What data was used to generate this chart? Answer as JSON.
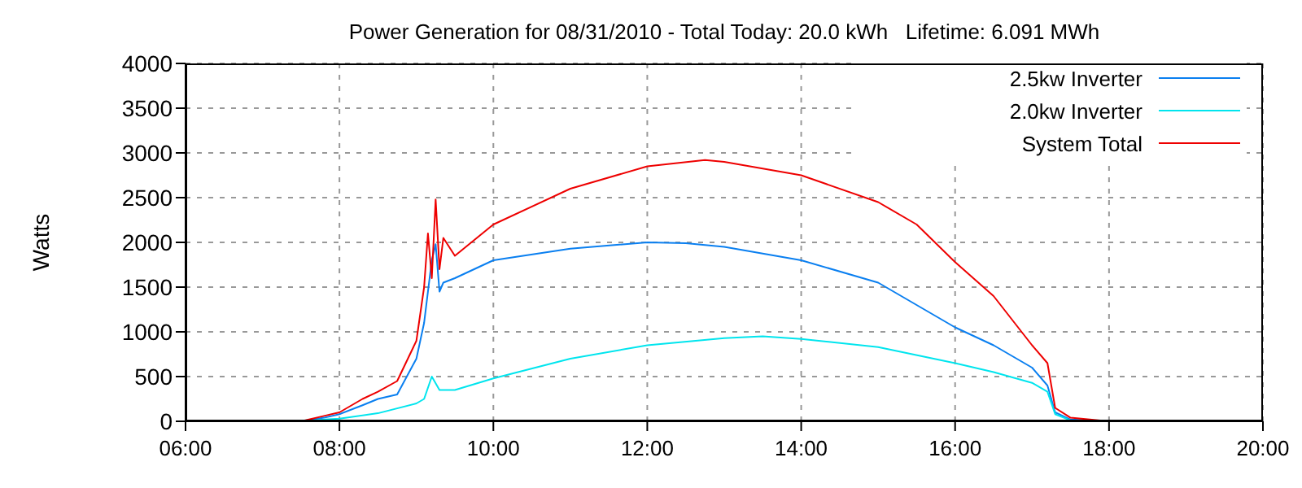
{
  "chart_data": {
    "type": "line",
    "title": "Power Generation for 08/31/2010 - Total Today: 20.0 kWh   Lifetime: 6.091 MWh",
    "ylabel": "Watts",
    "xlim": [
      6,
      20
    ],
    "xticks": [
      {
        "value": 6,
        "label": "06:00"
      },
      {
        "value": 8,
        "label": "08:00"
      },
      {
        "value": 10,
        "label": "10:00"
      },
      {
        "value": 12,
        "label": "12:00"
      },
      {
        "value": 14,
        "label": "14:00"
      },
      {
        "value": 16,
        "label": "16:00"
      },
      {
        "value": 18,
        "label": "18:00"
      },
      {
        "value": 20,
        "label": "20:00"
      }
    ],
    "ylim": [
      0,
      4000
    ],
    "yticks": [
      0,
      500,
      1000,
      1500,
      2000,
      2500,
      3000,
      3500,
      4000
    ],
    "grid": true,
    "legend": "top right",
    "marker": "none",
    "line_style": "solid",
    "series": [
      {
        "name": "2.5kw Inverter",
        "color": "#0a7ff0",
        "x": [
          7.5,
          7.8,
          8,
          8.3,
          8.5,
          8.75,
          9,
          9.1,
          9.2,
          9.25,
          9.3,
          9.35,
          9.5,
          10,
          11,
          12,
          12.5,
          13,
          14,
          15,
          16,
          16.5,
          17,
          17.2,
          17.3,
          17.5,
          18
        ],
        "values": [
          0,
          40,
          80,
          180,
          250,
          300,
          700,
          1100,
          1800,
          1980,
          1450,
          1550,
          1600,
          1800,
          1930,
          2000,
          1990,
          1950,
          1800,
          1550,
          1050,
          850,
          600,
          400,
          100,
          20,
          0
        ]
      },
      {
        "name": "2.0kw Inverter",
        "color": "#00e5ee",
        "x": [
          7.5,
          7.8,
          8,
          8.5,
          9,
          9.1,
          9.2,
          9.3,
          9.5,
          10,
          11,
          12,
          13,
          13.5,
          14,
          15,
          16,
          16.5,
          17,
          17.2,
          17.3,
          17.5,
          18
        ],
        "values": [
          0,
          20,
          30,
          90,
          200,
          250,
          500,
          350,
          350,
          480,
          700,
          850,
          930,
          950,
          920,
          830,
          650,
          550,
          430,
          330,
          80,
          10,
          0
        ]
      },
      {
        "name": "System Total",
        "color": "#ee0000",
        "x": [
          7.5,
          7.8,
          8,
          8.3,
          8.5,
          8.75,
          9,
          9.1,
          9.15,
          9.2,
          9.25,
          9.3,
          9.35,
          9.5,
          10,
          11,
          12,
          12.75,
          13,
          14,
          15,
          15.5,
          16,
          16.5,
          17,
          17.2,
          17.3,
          17.5,
          18,
          18.8
        ],
        "values": [
          0,
          60,
          100,
          250,
          330,
          450,
          900,
          1500,
          2100,
          1600,
          2480,
          1700,
          2050,
          1850,
          2200,
          2600,
          2850,
          2920,
          2900,
          2750,
          2450,
          2200,
          1780,
          1400,
          850,
          650,
          150,
          40,
          0,
          0
        ]
      }
    ]
  }
}
